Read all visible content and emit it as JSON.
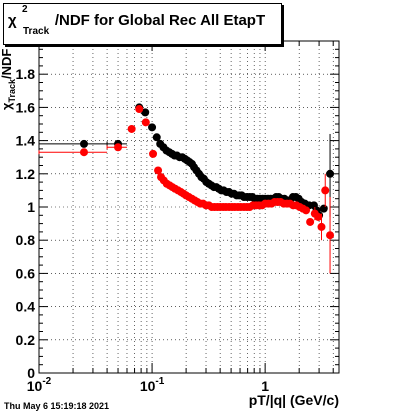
{
  "title": {
    "chi_symbol": "χ",
    "superscript": "2",
    "subscript": "Track",
    "rest": "/NDF for Global Rec All EtapT"
  },
  "timestamp": "Thu May  6 15:19:18 2021",
  "chart_data": {
    "type": "scatter",
    "title": "χ²_Track/NDF for Global Rec All EtapT",
    "xlabel": "pT/|q| (GeV/c)",
    "ylabel": "χ²_Track/NDF",
    "x_scale": "log",
    "xlim": [
      0.01,
      4.5
    ],
    "ylim": [
      0,
      2
    ],
    "grid": true,
    "x_tick_labels": [
      {
        "value": 0.01,
        "label": "10",
        "exp": "-2"
      },
      {
        "value": 0.1,
        "label": "10",
        "exp": "-1"
      },
      {
        "value": 1,
        "label": "1",
        "exp": ""
      }
    ],
    "y_ticks": [
      {
        "value": 0,
        "label": "0"
      },
      {
        "value": 0.2,
        "label": "0.2"
      },
      {
        "value": 0.4,
        "label": "0.4"
      },
      {
        "value": 0.6,
        "label": "0.6"
      },
      {
        "value": 0.8,
        "label": "0.8"
      },
      {
        "value": 1.0,
        "label": "1"
      },
      {
        "value": 1.2,
        "label": "1.2"
      },
      {
        "value": 1.4,
        "label": "1.4"
      },
      {
        "value": 1.6,
        "label": "1.6"
      },
      {
        "value": 1.8,
        "label": "1.8"
      }
    ],
    "series": [
      {
        "color": "#000000",
        "points": [
          {
            "x": 0.025,
            "y": 1.38,
            "xlo": 0.01,
            "xhi": 0.04
          },
          {
            "x": 0.05,
            "y": 1.38,
            "xlo": 0.04,
            "xhi": 0.06
          },
          {
            "x": 0.077,
            "y": 1.6
          },
          {
            "x": 0.087,
            "y": 1.57
          },
          {
            "x": 0.1,
            "y": 1.48
          },
          {
            "x": 0.11,
            "y": 1.42
          },
          {
            "x": 0.118,
            "y": 1.38
          },
          {
            "x": 0.126,
            "y": 1.36
          },
          {
            "x": 0.134,
            "y": 1.34
          },
          {
            "x": 0.142,
            "y": 1.33
          },
          {
            "x": 0.15,
            "y": 1.32
          },
          {
            "x": 0.158,
            "y": 1.31
          },
          {
            "x": 0.166,
            "y": 1.31
          },
          {
            "x": 0.175,
            "y": 1.3
          },
          {
            "x": 0.185,
            "y": 1.3
          },
          {
            "x": 0.195,
            "y": 1.29
          },
          {
            "x": 0.205,
            "y": 1.28
          },
          {
            "x": 0.215,
            "y": 1.27
          },
          {
            "x": 0.225,
            "y": 1.26
          },
          {
            "x": 0.235,
            "y": 1.24
          },
          {
            "x": 0.247,
            "y": 1.22
          },
          {
            "x": 0.26,
            "y": 1.2
          },
          {
            "x": 0.273,
            "y": 1.18
          },
          {
            "x": 0.287,
            "y": 1.17
          },
          {
            "x": 0.302,
            "y": 1.15
          },
          {
            "x": 0.318,
            "y": 1.14
          },
          {
            "x": 0.335,
            "y": 1.13
          },
          {
            "x": 0.352,
            "y": 1.12
          },
          {
            "x": 0.37,
            "y": 1.12
          },
          {
            "x": 0.39,
            "y": 1.11
          },
          {
            "x": 0.41,
            "y": 1.1
          },
          {
            "x": 0.43,
            "y": 1.1
          },
          {
            "x": 0.455,
            "y": 1.09
          },
          {
            "x": 0.48,
            "y": 1.09
          },
          {
            "x": 0.505,
            "y": 1.08
          },
          {
            "x": 0.53,
            "y": 1.08
          },
          {
            "x": 0.56,
            "y": 1.07
          },
          {
            "x": 0.59,
            "y": 1.07
          },
          {
            "x": 0.62,
            "y": 1.07
          },
          {
            "x": 0.65,
            "y": 1.06
          },
          {
            "x": 0.69,
            "y": 1.06
          },
          {
            "x": 0.73,
            "y": 1.06
          },
          {
            "x": 0.77,
            "y": 1.06
          },
          {
            "x": 0.81,
            "y": 1.05
          },
          {
            "x": 0.85,
            "y": 1.05
          },
          {
            "x": 0.9,
            "y": 1.05
          },
          {
            "x": 0.95,
            "y": 1.05
          },
          {
            "x": 1.0,
            "y": 1.05
          },
          {
            "x": 1.06,
            "y": 1.05
          },
          {
            "x": 1.12,
            "y": 1.05
          },
          {
            "x": 1.18,
            "y": 1.05
          },
          {
            "x": 1.25,
            "y": 1.06
          },
          {
            "x": 1.32,
            "y": 1.06
          },
          {
            "x": 1.4,
            "y": 1.05
          },
          {
            "x": 1.48,
            "y": 1.05
          },
          {
            "x": 1.57,
            "y": 1.04
          },
          {
            "x": 1.66,
            "y": 1.04
          },
          {
            "x": 1.76,
            "y": 1.06
          },
          {
            "x": 1.87,
            "y": 1.06
          },
          {
            "x": 1.98,
            "y": 1.05
          },
          {
            "x": 2.1,
            "y": 1.03
          },
          {
            "x": 2.25,
            "y": 1.02
          },
          {
            "x": 2.45,
            "y": 1.01
          },
          {
            "x": 2.7,
            "y": 1.01
          },
          {
            "x": 2.85,
            "y": 0.98
          },
          {
            "x": 3.0,
            "y": 0.95
          },
          {
            "x": 3.3,
            "y": 0.99
          },
          {
            "x": 3.75,
            "y": 1.2,
            "ylo": 0.94,
            "yhi": 1.44
          }
        ]
      },
      {
        "color": "#ff0000",
        "points": [
          {
            "x": 0.025,
            "y": 1.33,
            "xlo": 0.01,
            "xhi": 0.04
          },
          {
            "x": 0.05,
            "y": 1.36,
            "xlo": 0.04,
            "xhi": 0.06
          },
          {
            "x": 0.066,
            "y": 1.47
          },
          {
            "x": 0.077,
            "y": 1.59
          },
          {
            "x": 0.088,
            "y": 1.51
          },
          {
            "x": 0.102,
            "y": 1.32
          },
          {
            "x": 0.113,
            "y": 1.22
          },
          {
            "x": 0.12,
            "y": 1.18
          },
          {
            "x": 0.127,
            "y": 1.16
          },
          {
            "x": 0.135,
            "y": 1.14
          },
          {
            "x": 0.143,
            "y": 1.13
          },
          {
            "x": 0.151,
            "y": 1.12
          },
          {
            "x": 0.16,
            "y": 1.11
          },
          {
            "x": 0.17,
            "y": 1.1
          },
          {
            "x": 0.18,
            "y": 1.09
          },
          {
            "x": 0.19,
            "y": 1.08
          },
          {
            "x": 0.2,
            "y": 1.07
          },
          {
            "x": 0.212,
            "y": 1.06
          },
          {
            "x": 0.225,
            "y": 1.05
          },
          {
            "x": 0.238,
            "y": 1.04
          },
          {
            "x": 0.252,
            "y": 1.03
          },
          {
            "x": 0.267,
            "y": 1.02
          },
          {
            "x": 0.283,
            "y": 1.02
          },
          {
            "x": 0.3,
            "y": 1.01
          },
          {
            "x": 0.318,
            "y": 1.01
          },
          {
            "x": 0.337,
            "y": 1.0
          },
          {
            "x": 0.357,
            "y": 1.0
          },
          {
            "x": 0.378,
            "y": 1.0
          },
          {
            "x": 0.4,
            "y": 1.0
          },
          {
            "x": 0.425,
            "y": 1.0
          },
          {
            "x": 0.45,
            "y": 1.0
          },
          {
            "x": 0.48,
            "y": 1.0
          },
          {
            "x": 0.51,
            "y": 1.0
          },
          {
            "x": 0.54,
            "y": 1.0
          },
          {
            "x": 0.575,
            "y": 1.0
          },
          {
            "x": 0.61,
            "y": 1.0
          },
          {
            "x": 0.65,
            "y": 1.0
          },
          {
            "x": 0.69,
            "y": 1.0
          },
          {
            "x": 0.73,
            "y": 1.0
          },
          {
            "x": 0.78,
            "y": 1.01
          },
          {
            "x": 0.83,
            "y": 1.01
          },
          {
            "x": 0.88,
            "y": 1.01
          },
          {
            "x": 0.94,
            "y": 1.01
          },
          {
            "x": 1.0,
            "y": 1.02
          },
          {
            "x": 1.07,
            "y": 1.02
          },
          {
            "x": 1.14,
            "y": 1.02
          },
          {
            "x": 1.21,
            "y": 1.03
          },
          {
            "x": 1.29,
            "y": 1.03
          },
          {
            "x": 1.37,
            "y": 1.03
          },
          {
            "x": 1.46,
            "y": 1.02
          },
          {
            "x": 1.56,
            "y": 1.02
          },
          {
            "x": 1.66,
            "y": 1.02
          },
          {
            "x": 1.77,
            "y": 1.01
          },
          {
            "x": 1.89,
            "y": 1.01
          },
          {
            "x": 2.02,
            "y": 1.0
          },
          {
            "x": 2.16,
            "y": 0.99
          },
          {
            "x": 2.3,
            "y": 0.98
          },
          {
            "x": 2.5,
            "y": 0.91
          },
          {
            "x": 2.75,
            "y": 0.96,
            "ylo": 0.92,
            "yhi": 1.0
          },
          {
            "x": 2.95,
            "y": 0.94
          },
          {
            "x": 3.15,
            "y": 0.88,
            "ylo": 0.8,
            "yhi": 0.96
          },
          {
            "x": 3.4,
            "y": 1.1,
            "ylo": 1.0,
            "yhi": 1.2
          },
          {
            "x": 3.75,
            "y": 0.83,
            "ylo": 0.6,
            "yhi": 1.06
          }
        ]
      }
    ]
  }
}
